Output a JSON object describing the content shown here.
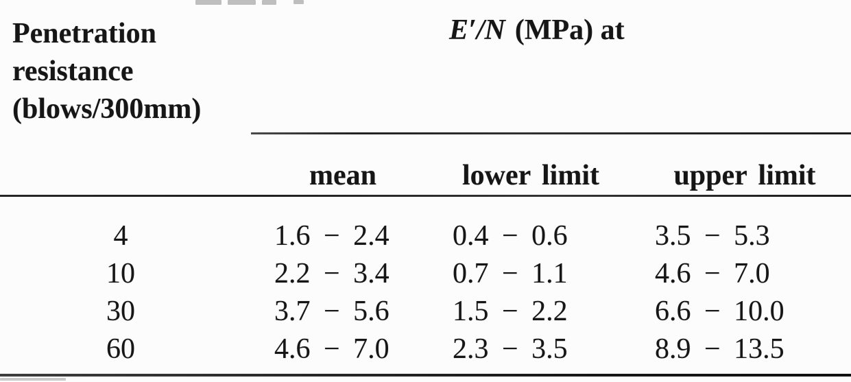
{
  "table": {
    "row_header": {
      "lines": [
        "Penetration",
        "resistance",
        "(blows/300mm)"
      ]
    },
    "group_header": {
      "symbol": "E′/N",
      "unit": "(MPa) at"
    },
    "columns": [
      "mean",
      "lower limit",
      "upper limit"
    ],
    "rows": [
      {
        "penetration": "4",
        "mean": "1.6 − 2.4",
        "lower_limit": "0.4 − 0.6",
        "upper_limit": "3.5 − 5.3"
      },
      {
        "penetration": "10",
        "mean": "2.2 − 3.4",
        "lower_limit": "0.7 − 1.1",
        "upper_limit": "4.6 − 7.0"
      },
      {
        "penetration": "30",
        "mean": "3.7 − 5.6",
        "lower_limit": "1.5 − 2.2",
        "upper_limit": "6.6 − 10.0"
      },
      {
        "penetration": "60",
        "mean": "4.6 − 7.0",
        "lower_limit": "2.3 − 3.5",
        "upper_limit": "8.9 − 13.5"
      }
    ]
  },
  "colors": {
    "ink": "#161616",
    "background": "#fcfcfc",
    "rule": "#2a2a2a"
  }
}
